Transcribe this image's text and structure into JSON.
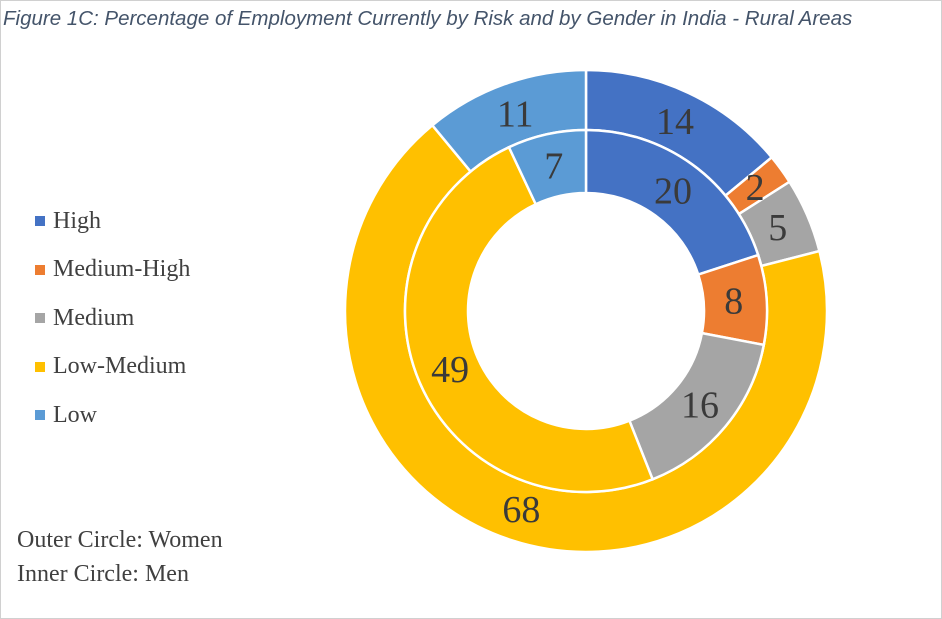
{
  "title": "Figure 1C: Percentage of Employment Currently by Risk and by Gender in India - Rural Areas",
  "notes": {
    "outer": "Outer Circle: Women",
    "inner": "Inner Circle: Men"
  },
  "chart_data": {
    "type": "pie",
    "subtype": "donut",
    "title": "Figure 1C: Percentage of Employment Currently by Risk and by Gender in India - Rural Areas",
    "categories": [
      "High",
      "Medium-High",
      "Medium",
      "Low-Medium",
      "Low"
    ],
    "colors": [
      "#4472c4",
      "#ed7d31",
      "#a5a5a5",
      "#ffc000",
      "#5b9bd5"
    ],
    "series": [
      {
        "name": "Women",
        "ring": "outer",
        "values": [
          14,
          2,
          5,
          68,
          11
        ]
      },
      {
        "name": "Men",
        "ring": "inner",
        "values": [
          20,
          8,
          16,
          49,
          7
        ]
      }
    ],
    "legend": "left"
  }
}
